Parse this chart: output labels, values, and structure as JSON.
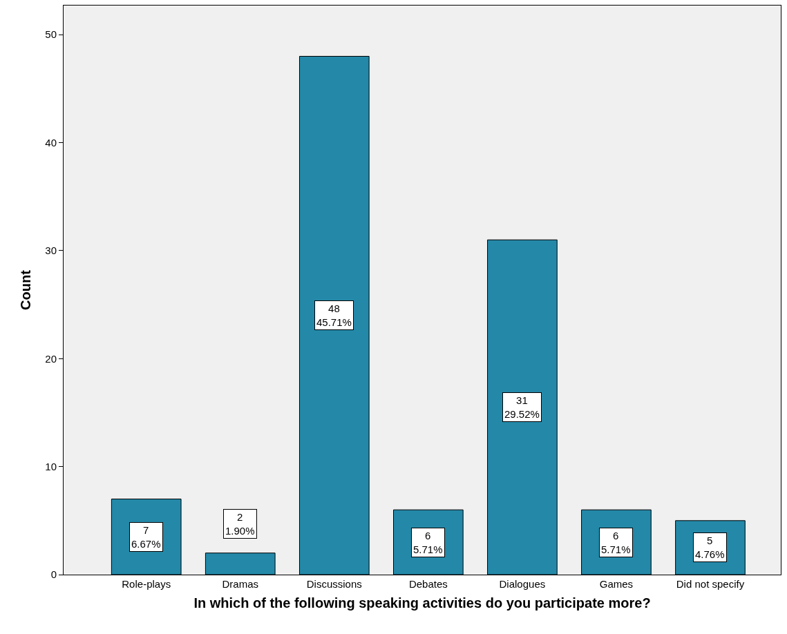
{
  "chart_data": {
    "type": "bar",
    "xlabel": "In which of the following speaking activities do you participate more?",
    "ylabel": "Count",
    "categories": [
      "Role-plays",
      "Dramas",
      "Discussions",
      "Debates",
      "Dialogues",
      "Games",
      "Did not specify"
    ],
    "values": [
      7,
      2,
      48,
      6,
      31,
      6,
      5
    ],
    "value_labels": [
      "7\n6.67%",
      "2\n1.90%",
      "48\n45.71%",
      "6\n5.71%",
      "31\n29.52%",
      "6\n5.71%",
      "5\n4.76%"
    ],
    "color": "#2489a9",
    "ylim": [
      0,
      52.7
    ],
    "yticks": [
      0,
      10,
      20,
      30,
      40,
      50
    ],
    "grid": false,
    "legend": false
  }
}
